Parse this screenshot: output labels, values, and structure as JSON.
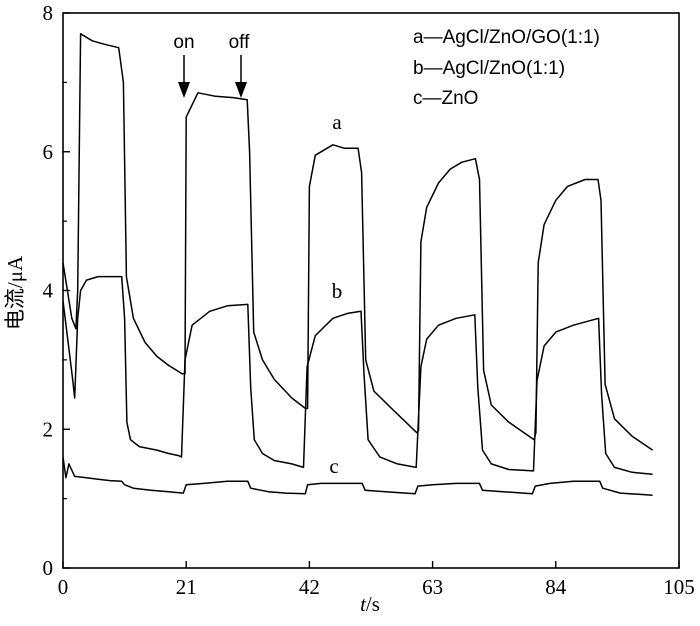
{
  "chart_data": {
    "type": "line",
    "xlabel_italic": "t",
    "xlabel_unit": "/s",
    "ylabel": "电流/μA",
    "xlim": [
      0,
      105
    ],
    "ylim": [
      0,
      8
    ],
    "xticks": [
      "0",
      "21",
      "42",
      "63",
      "84",
      "105"
    ],
    "yticks": [
      "0",
      "2",
      "4",
      "6",
      "8"
    ],
    "legend": [
      "a—AgCl/ZnO/GO(1:1)",
      "b—AgCl/ZnO(1:1)",
      "c—ZnO"
    ],
    "annotations": [
      "on",
      "off"
    ],
    "series": [
      {
        "name": "a",
        "x": [
          0,
          1.5,
          2.2,
          2.5,
          3,
          5,
          7,
          9.5,
          10.3,
          10.8,
          12,
          14,
          16,
          18,
          20.3,
          20.8,
          21,
          23,
          26,
          29,
          31.4,
          31.8,
          32.5,
          34,
          36,
          39,
          41.3,
          41.7,
          42,
          43,
          46,
          48,
          50.3,
          50.9,
          51.6,
          53,
          56,
          60.3,
          60.6,
          61,
          62,
          64,
          66,
          68,
          70.3,
          71,
          71.7,
          73,
          76,
          80.3,
          80.6,
          81,
          82,
          84,
          86,
          89,
          91.2,
          91.7,
          92.4,
          94,
          97,
          100.5
        ],
        "y": [
          4.4,
          3.6,
          3.45,
          4.0,
          7.7,
          7.6,
          7.55,
          7.5,
          7.0,
          4.2,
          3.6,
          3.25,
          3.05,
          2.92,
          2.8,
          2.8,
          6.5,
          6.85,
          6.8,
          6.78,
          6.75,
          6.0,
          3.4,
          3.0,
          2.72,
          2.45,
          2.3,
          2.3,
          5.5,
          5.95,
          6.1,
          6.05,
          6.05,
          5.7,
          3.0,
          2.55,
          2.3,
          1.95,
          1.98,
          4.7,
          5.2,
          5.55,
          5.75,
          5.85,
          5.9,
          5.6,
          2.85,
          2.35,
          2.1,
          1.85,
          1.95,
          4.4,
          4.95,
          5.3,
          5.5,
          5.6,
          5.6,
          5.3,
          2.65,
          2.15,
          1.9,
          1.7
        ]
      },
      {
        "name": "b",
        "x": [
          0,
          0.8,
          1.6,
          2.0,
          2.5,
          3,
          4,
          6,
          10,
          10.5,
          10.9,
          11.5,
          13,
          16,
          18,
          19.7,
          20.2,
          20.8,
          22,
          25,
          28,
          31.5,
          32,
          32.6,
          34,
          36,
          39,
          41,
          41.6,
          43,
          46,
          48.5,
          50.8,
          51.3,
          52,
          54,
          57,
          60.2,
          61,
          62,
          64,
          67,
          70.2,
          70.7,
          71.5,
          73,
          76,
          80.2,
          80.8,
          82,
          84,
          87,
          91.3,
          91.8,
          92.5,
          94,
          97,
          100.5
        ],
        "y": [
          3.85,
          3.3,
          2.75,
          2.45,
          3.6,
          4.0,
          4.15,
          4.2,
          4.2,
          3.6,
          2.1,
          1.85,
          1.75,
          1.7,
          1.65,
          1.62,
          1.6,
          3.0,
          3.5,
          3.7,
          3.78,
          3.8,
          2.6,
          1.85,
          1.65,
          1.55,
          1.5,
          1.45,
          2.9,
          3.35,
          3.6,
          3.67,
          3.7,
          2.8,
          1.85,
          1.6,
          1.5,
          1.45,
          2.9,
          3.3,
          3.5,
          3.6,
          3.65,
          2.6,
          1.7,
          1.5,
          1.42,
          1.4,
          2.7,
          3.2,
          3.4,
          3.5,
          3.6,
          2.5,
          1.65,
          1.45,
          1.38,
          1.35
        ]
      },
      {
        "name": "c",
        "x": [
          0,
          0.5,
          1,
          2,
          4,
          6,
          8,
          10,
          10.5,
          12,
          15,
          18,
          20.5,
          21,
          24,
          28,
          31.5,
          32,
          35,
          38,
          41.3,
          41.7,
          44,
          48,
          51,
          51.5,
          55,
          60,
          60.5,
          63,
          67,
          71,
          71.5,
          75,
          80,
          80.5,
          83,
          87,
          91.5,
          92,
          95,
          100.5
        ],
        "y": [
          1.6,
          1.3,
          1.5,
          1.32,
          1.3,
          1.28,
          1.26,
          1.25,
          1.2,
          1.15,
          1.12,
          1.1,
          1.08,
          1.2,
          1.22,
          1.25,
          1.25,
          1.15,
          1.1,
          1.08,
          1.07,
          1.2,
          1.22,
          1.22,
          1.22,
          1.12,
          1.1,
          1.07,
          1.18,
          1.2,
          1.22,
          1.22,
          1.12,
          1.1,
          1.07,
          1.18,
          1.22,
          1.25,
          1.25,
          1.15,
          1.08,
          1.05
        ]
      }
    ]
  }
}
